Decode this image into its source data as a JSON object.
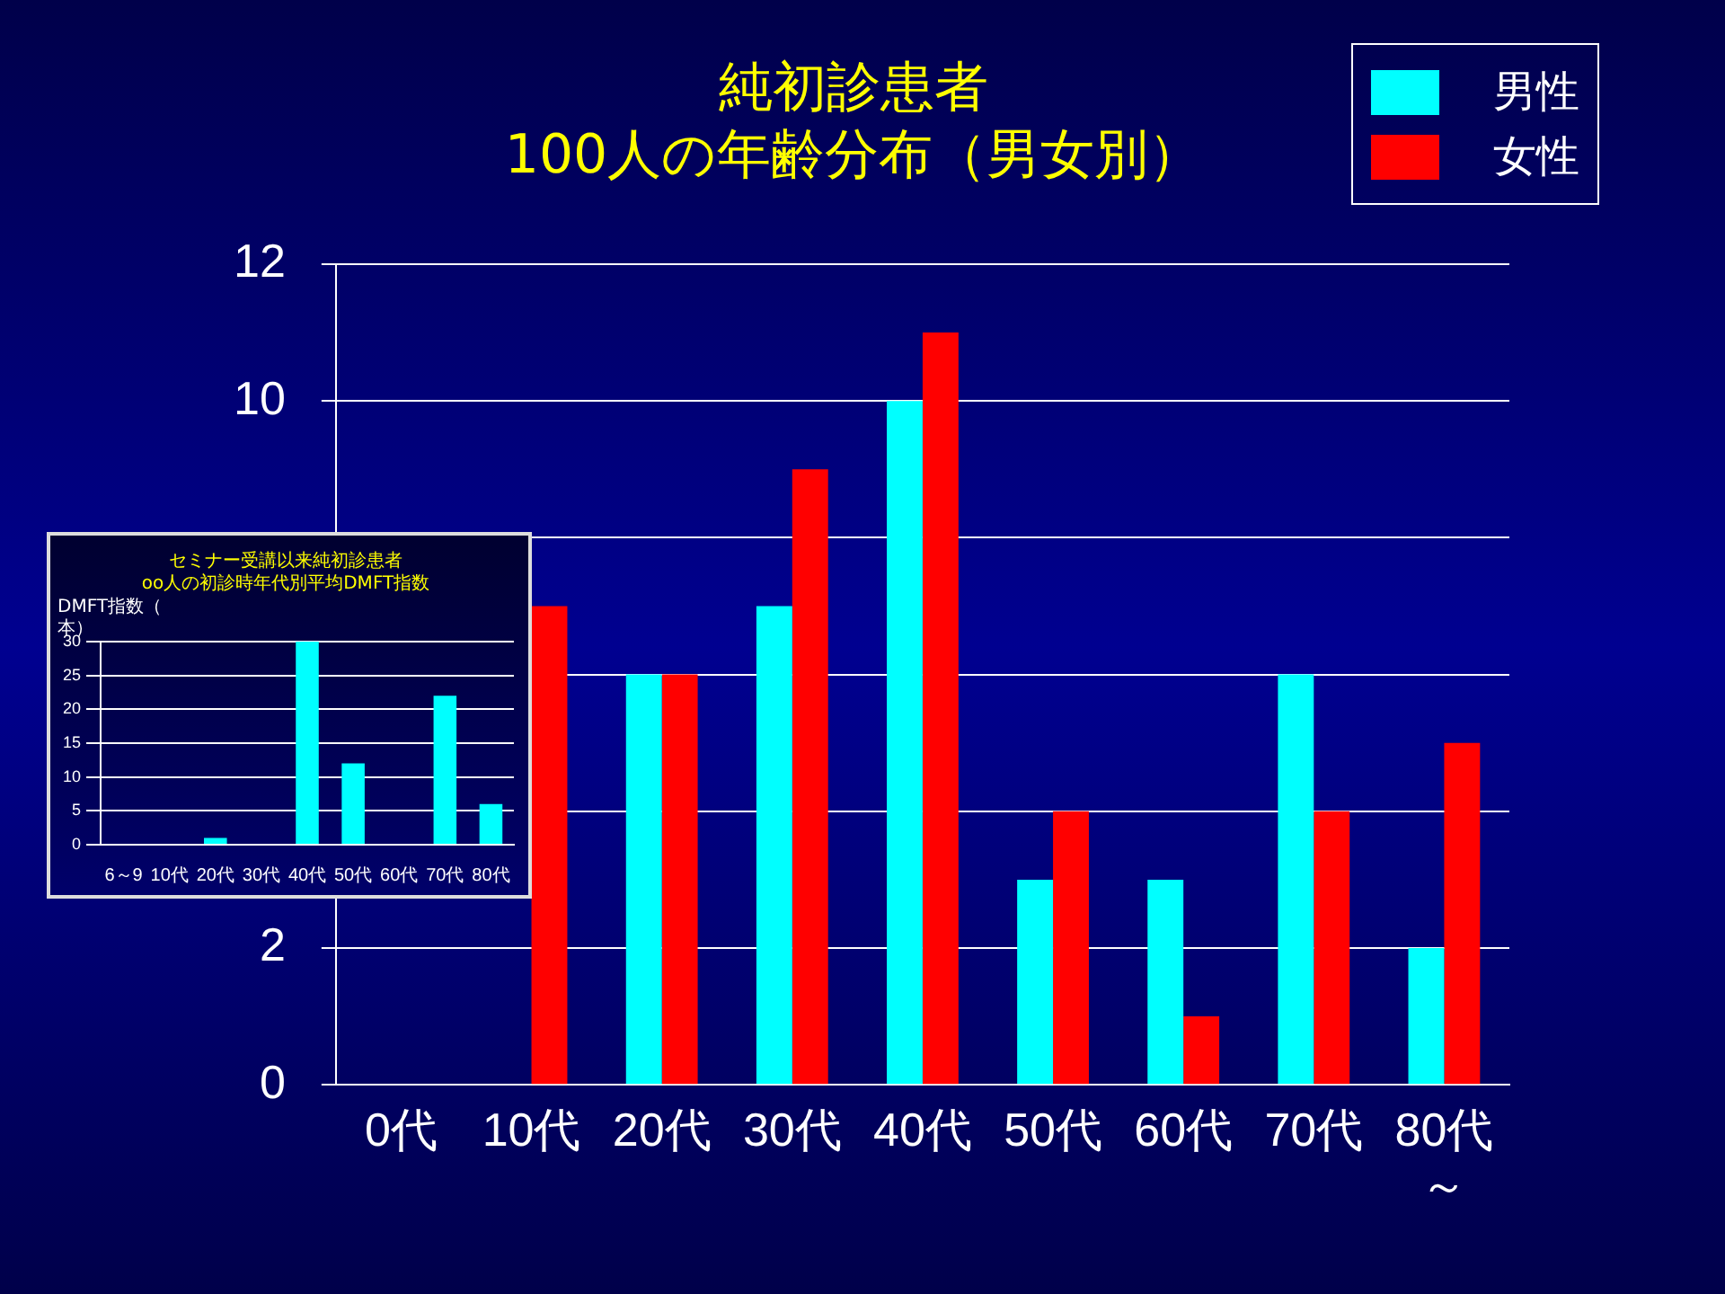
{
  "chart_data": [
    {
      "type": "bar",
      "title": "純初診患者\n100人の年齢分布（男女別）",
      "categories": [
        "0代",
        "10代",
        "20代",
        "30代",
        "40代",
        "50代",
        "60代",
        "70代",
        "80代～"
      ],
      "series": [
        {
          "name": "男性",
          "color": "#00ffff",
          "values": [
            null,
            null,
            6,
            7,
            10,
            3,
            3,
            6,
            2
          ]
        },
        {
          "name": "女性",
          "color": "#ff0000",
          "values": [
            null,
            7,
            6,
            9,
            11,
            4,
            1,
            4,
            5
          ]
        }
      ],
      "ylim": [
        0,
        12
      ],
      "yticks": [
        0,
        2,
        {
          "value": 4,
          "label": null
        },
        {
          "value": 6,
          "label": null
        },
        {
          "value": 8,
          "label": null
        },
        10,
        12
      ],
      "grid": "y",
      "legend": "top right"
    },
    {
      "type": "bar",
      "title": "セミナー受講以来純初診患者\noo人の初診時年代別平均DMFT指数",
      "ylabel": "DMFT指数（本）",
      "categories": [
        "6～9",
        "10代",
        "20代",
        "30代",
        "40代",
        "50代",
        "60代",
        "70代",
        "80代"
      ],
      "series": [
        {
          "color": "#00ffff",
          "values": [
            0,
            0,
            1,
            0,
            30,
            12,
            0,
            22,
            6
          ]
        }
      ],
      "ylim": [
        0,
        30
      ],
      "yticks": [
        0,
        5,
        10,
        15,
        20,
        25,
        30
      ],
      "grid": "y"
    }
  ]
}
